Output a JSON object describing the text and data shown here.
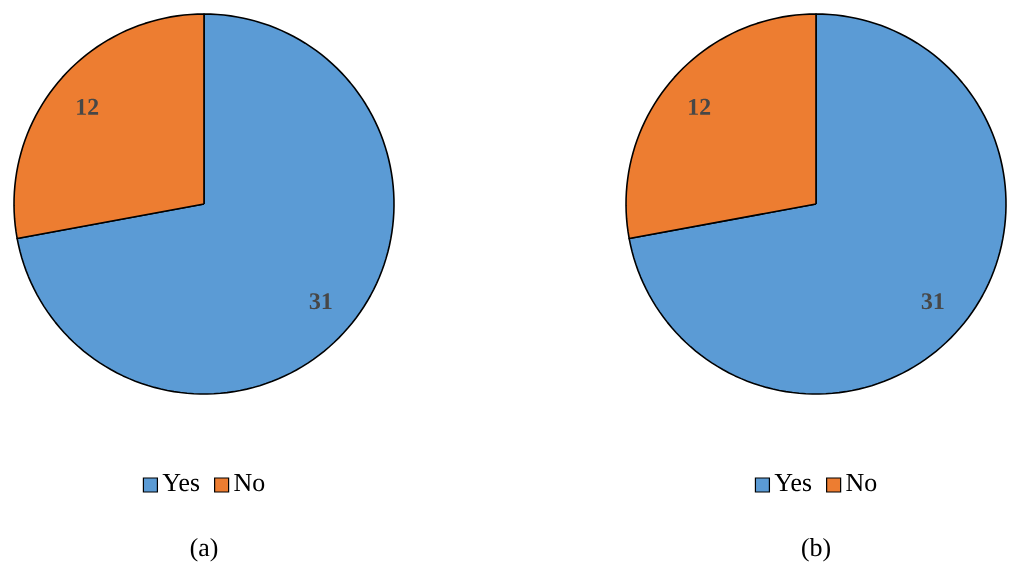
{
  "chart_data": [
    {
      "type": "pie",
      "title": "(a)",
      "categories": [
        "Yes",
        "No"
      ],
      "values": [
        31,
        12
      ],
      "colors": [
        "#5b9bd5",
        "#ed7d31"
      ],
      "data_labels": true,
      "legend": "bottom"
    },
    {
      "type": "pie",
      "title": "(b)",
      "categories": [
        "Yes",
        "No"
      ],
      "values": [
        31,
        12
      ],
      "colors": [
        "#5b9bd5",
        "#ed7d31"
      ],
      "data_labels": true,
      "legend": "bottom"
    }
  ]
}
